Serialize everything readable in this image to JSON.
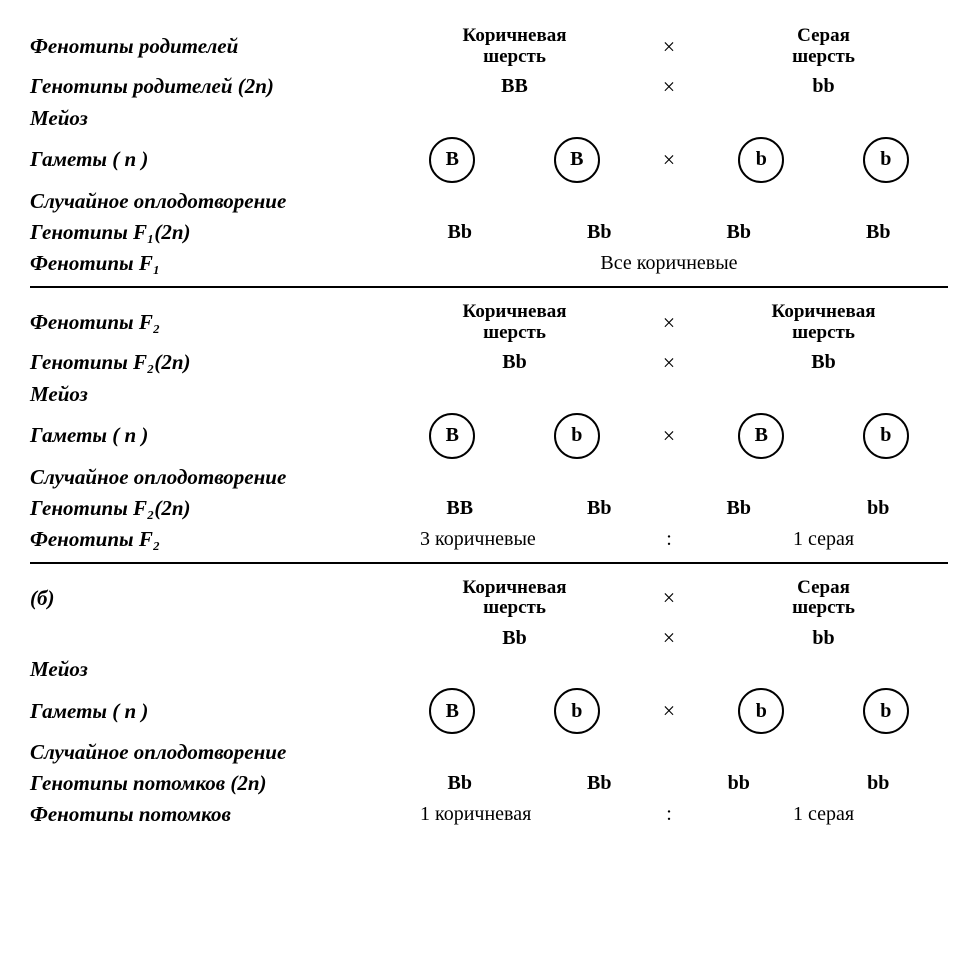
{
  "sec1": {
    "r1": {
      "label": "Фенотипы родителей",
      "left": "Коричневая\nшерсть",
      "mid": "×",
      "right": "Серая\nшерсть"
    },
    "r2": {
      "label": "Генотипы родителей (2n)",
      "left": "BB",
      "mid": "×",
      "right": "bb"
    },
    "r3": {
      "label": "Мейоз"
    },
    "r4": {
      "label": "Гаметы ( n )",
      "g1": "B",
      "g2": "B",
      "mid": "×",
      "g3": "b",
      "g4": "b"
    },
    "r5": {
      "label": "Случайное оплодотворение"
    },
    "r6": {
      "label": "Генотипы F₁(2n)",
      "c1": "Bb",
      "c2": "Bb",
      "c3": "Bb",
      "c4": "Bb"
    },
    "r7": {
      "label": "Фенотипы F₁",
      "text": "Все коричневые"
    }
  },
  "sec2": {
    "r1": {
      "label": "Фенотипы F₂",
      "left": "Коричневая\nшерсть",
      "mid": "×",
      "right": "Коричневая\nшерсть"
    },
    "r2": {
      "label": "Генотипы F₂(2n)",
      "left": "Bb",
      "mid": "×",
      "right": "Bb"
    },
    "r3": {
      "label": "Мейоз"
    },
    "r4": {
      "label": "Гаметы ( n )",
      "g1": "B",
      "g2": "b",
      "mid": "×",
      "g3": "B",
      "g4": "b"
    },
    "r5": {
      "label": "Случайное оплодотворение"
    },
    "r6": {
      "label": "Генотипы F₂(2n)",
      "c1": "BB",
      "c2": "Bb",
      "c3": "Bb",
      "c4": "bb"
    },
    "r7": {
      "label": "Фенотипы F₂",
      "left": "3 коричневые",
      "mid": ":",
      "right": "1 серая"
    }
  },
  "sec3": {
    "r0": {
      "label": "(б)",
      "left": "Коричневая\nшерсть",
      "mid": "×",
      "right": "Серая\nшерсть"
    },
    "r1": {
      "left": "Bb",
      "mid": "×",
      "right": "bb"
    },
    "r2": {
      "label": "Мейоз"
    },
    "r3": {
      "label": "Гаметы ( n )",
      "g1": "B",
      "g2": "b",
      "mid": "×",
      "g3": "b",
      "g4": "b"
    },
    "r4": {
      "label": "Случайное оплодотворение"
    },
    "r5": {
      "label": "Генотипы потомков (2n)",
      "c1": "Bb",
      "c2": "Bb",
      "c3": "bb",
      "c4": "bb"
    },
    "r6": {
      "label": "Фенотипы потомков",
      "left": "1 коричневая",
      "mid": ":",
      "right": "1 серая"
    }
  }
}
